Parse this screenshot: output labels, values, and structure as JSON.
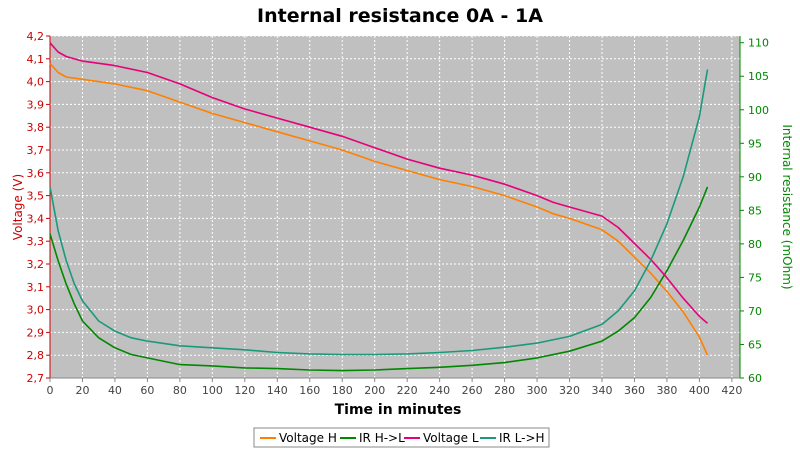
{
  "chart_data": {
    "type": "line",
    "title": "Internal resistance  0A - 1A",
    "xlabel": "Time in minutes",
    "ylabel_left": "Voltage (V)",
    "ylabel_right": "Internal resistance (mOhm)",
    "xlim": [
      0,
      425
    ],
    "ylim_left": [
      2.7,
      4.2
    ],
    "ylim_right": [
      60,
      111
    ],
    "x_ticks": [
      0,
      20,
      40,
      60,
      80,
      100,
      120,
      140,
      160,
      180,
      200,
      220,
      240,
      260,
      280,
      300,
      320,
      340,
      360,
      380,
      400,
      420
    ],
    "y_ticks_left": [
      "2,7",
      "2,8",
      "2,9",
      "3,0",
      "3,1",
      "3,2",
      "3,3",
      "3,4",
      "3,5",
      "3,6",
      "3,7",
      "3,8",
      "3,9",
      "4,0",
      "4,1",
      "4,2"
    ],
    "y_ticks_right": [
      60,
      65,
      70,
      75,
      80,
      85,
      90,
      95,
      100,
      105,
      110
    ],
    "grid": true,
    "legend": "bottom",
    "series": [
      {
        "name": "Voltage H",
        "axis": "left",
        "color": "#ff8000",
        "x": [
          0,
          5,
          10,
          20,
          40,
          60,
          80,
          100,
          120,
          140,
          160,
          180,
          200,
          220,
          240,
          260,
          280,
          300,
          310,
          320,
          340,
          350,
          360,
          370,
          380,
          390,
          400,
          405
        ],
        "y": [
          4.08,
          4.04,
          4.02,
          4.01,
          3.99,
          3.96,
          3.91,
          3.86,
          3.82,
          3.78,
          3.74,
          3.7,
          3.65,
          3.61,
          3.57,
          3.54,
          3.5,
          3.45,
          3.42,
          3.4,
          3.35,
          3.3,
          3.23,
          3.16,
          3.08,
          2.99,
          2.88,
          2.8
        ]
      },
      {
        "name": "IR H->L",
        "axis": "right",
        "color": "#008800",
        "x": [
          0,
          5,
          10,
          15,
          20,
          30,
          40,
          50,
          60,
          80,
          100,
          120,
          140,
          160,
          180,
          200,
          220,
          240,
          260,
          280,
          300,
          320,
          340,
          350,
          360,
          370,
          380,
          390,
          400,
          405
        ],
        "y": [
          81.5,
          77.5,
          74,
          71,
          68.5,
          66,
          64.5,
          63.5,
          63,
          62,
          61.8,
          61.5,
          61.4,
          61.2,
          61.1,
          61.2,
          61.4,
          61.6,
          61.9,
          62.3,
          63,
          64,
          65.5,
          67,
          69,
          72,
          76,
          80.5,
          85.5,
          88.5
        ]
      },
      {
        "name": "Voltage L",
        "axis": "left",
        "color": "#e6007a",
        "x": [
          0,
          5,
          10,
          20,
          40,
          60,
          80,
          100,
          120,
          140,
          160,
          180,
          200,
          220,
          240,
          260,
          280,
          300,
          310,
          320,
          340,
          350,
          360,
          370,
          380,
          390,
          400,
          405
        ],
        "y": [
          4.17,
          4.13,
          4.11,
          4.09,
          4.07,
          4.04,
          3.99,
          3.93,
          3.88,
          3.84,
          3.8,
          3.76,
          3.71,
          3.66,
          3.62,
          3.59,
          3.55,
          3.5,
          3.47,
          3.45,
          3.41,
          3.36,
          3.29,
          3.22,
          3.14,
          3.05,
          2.97,
          2.94
        ]
      },
      {
        "name": "IR L->H",
        "axis": "right",
        "color": "#1a9a7a",
        "x": [
          0,
          5,
          10,
          15,
          20,
          30,
          40,
          50,
          60,
          80,
          100,
          120,
          140,
          160,
          180,
          200,
          220,
          240,
          260,
          280,
          300,
          320,
          340,
          350,
          360,
          370,
          380,
          390,
          400,
          405
        ],
        "y": [
          88.5,
          82,
          77.5,
          74,
          71.5,
          68.5,
          67,
          66,
          65.5,
          64.8,
          64.5,
          64.2,
          63.8,
          63.6,
          63.5,
          63.5,
          63.6,
          63.8,
          64.1,
          64.6,
          65.2,
          66.2,
          68,
          70,
          73,
          77.5,
          83,
          90,
          99,
          106
        ]
      }
    ]
  }
}
